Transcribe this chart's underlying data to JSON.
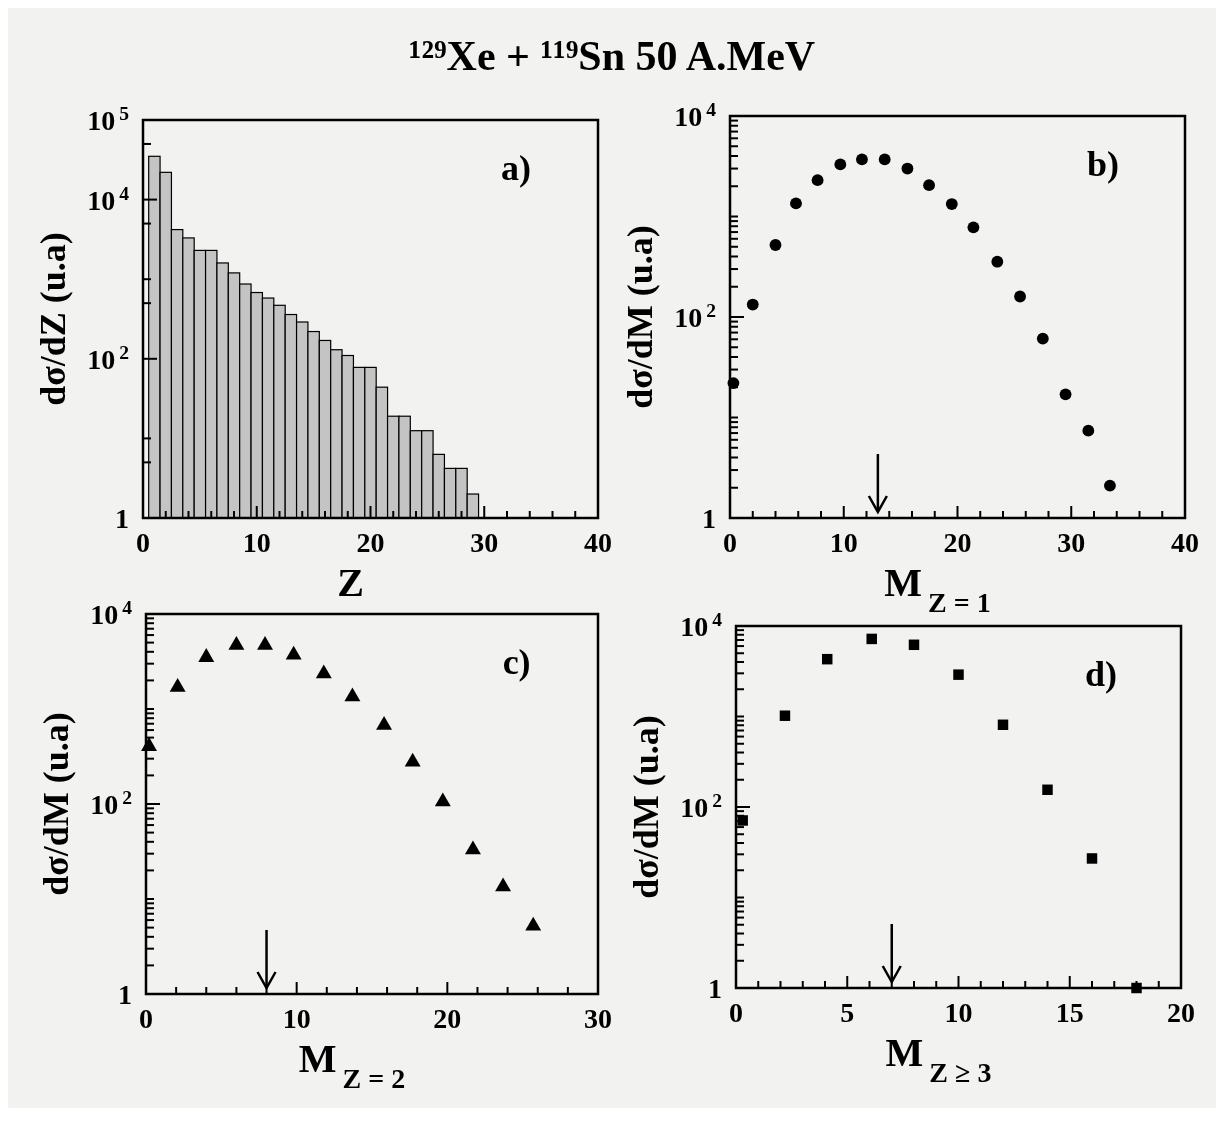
{
  "chart_data": [
    {
      "type": "histogram",
      "title": "¹²⁹Xe + ¹¹⁹Sn 50 A.MeV",
      "xlabel": "Z",
      "ylabel": "dσ/dZ (u.a)",
      "annotations": [
        "a)"
      ],
      "log": "y",
      "color": "#c4c4c4",
      "bins": [
        0.5,
        1.5,
        2.5,
        3.5,
        4.5,
        5.5,
        6.5,
        7.5,
        8.5,
        9.5,
        10.5,
        11.5,
        12.5,
        13.5,
        14.5,
        15.5,
        16.5,
        17.5,
        18.5,
        19.5,
        20.5,
        21.5,
        22.5,
        23.5,
        24.5,
        25.5,
        26.5,
        27.5,
        28.5,
        29.5
      ],
      "values": [
        35000,
        22000,
        4200,
        3300,
        2300,
        2300,
        1600,
        1200,
        870,
        680,
        580,
        470,
        360,
        290,
        220,
        170,
        130,
        110,
        78,
        78,
        44,
        19,
        19,
        12.5,
        12.5,
        6.3,
        4.2,
        4.2,
        2.0
      ],
      "xlim": [
        0,
        40
      ],
      "ylim": [
        1,
        100000
      ],
      "xticks": [
        0,
        {
          "value": 2,
          "label": null
        },
        {
          "value": 4,
          "label": null
        },
        {
          "value": 6,
          "label": null
        },
        {
          "value": 8,
          "label": null
        },
        10,
        {
          "value": 12,
          "label": null
        },
        {
          "value": 14,
          "label": null
        },
        {
          "value": 16,
          "label": null
        },
        {
          "value": 18,
          "label": null
        },
        20,
        {
          "value": 22,
          "label": null
        },
        {
          "value": 24,
          "label": null
        },
        {
          "value": 26,
          "label": null
        },
        {
          "value": 28,
          "label": null
        },
        30,
        {
          "value": 32,
          "label": null
        },
        {
          "value": 34,
          "label": null
        },
        {
          "value": 36,
          "label": null
        },
        {
          "value": 38,
          "label": null
        },
        40
      ],
      "yticks": [
        {
          "value": 1,
          "label": "1"
        },
        {
          "value": 5,
          "label": null
        },
        {
          "value": 10,
          "label": null
        },
        {
          "value": 100,
          "label": "10$^{2}$"
        },
        {
          "value": 500,
          "label": null
        },
        {
          "value": 1000,
          "label": null
        },
        {
          "value": 5000,
          "label": null
        },
        {
          "value": 10000,
          "label": "10$^{4}$"
        },
        {
          "value": 50000,
          "label": null
        },
        {
          "value": 100000,
          "label": "10$^{5}$"
        }
      ]
    },
    {
      "type": "scatter",
      "xlabel": "M$_{Z = 1}$",
      "ylabel": "dσ/dM (u.a)",
      "annotations": [
        "b)"
      ],
      "log": "y",
      "marker": "circle",
      "color": "#000000",
      "x": [
        0.3,
        2,
        4,
        5.8,
        7.7,
        9.7,
        11.6,
        13.6,
        15.6,
        17.5,
        19.5,
        21.4,
        23.5,
        25.5,
        27.5,
        29.5,
        31.5,
        33.4
      ],
      "values": [
        22,
        133,
        520,
        1350,
        2300,
        3300,
        3700,
        3700,
        3000,
        2050,
        1330,
        780,
        355,
        160,
        61,
        17,
        7.4,
        2.1
      ],
      "ref_lines": [
        {
          "axis": "x",
          "value": 13
        }
      ],
      "xlim": [
        0,
        40
      ],
      "ylim": [
        1,
        10000
      ],
      "xticks": [
        0,
        {
          "value": 2,
          "label": null
        },
        {
          "value": 4,
          "label": null
        },
        {
          "value": 6,
          "label": null
        },
        {
          "value": 8,
          "label": null
        },
        10,
        {
          "value": 12,
          "label": null
        },
        {
          "value": 14,
          "label": null
        },
        {
          "value": 16,
          "label": null
        },
        {
          "value": 18,
          "label": null
        },
        20,
        {
          "value": 22,
          "label": null
        },
        {
          "value": 24,
          "label": null
        },
        {
          "value": 26,
          "label": null
        },
        {
          "value": 28,
          "label": null
        },
        30,
        {
          "value": 32,
          "label": null
        },
        {
          "value": 34,
          "label": null
        },
        {
          "value": 36,
          "label": null
        },
        {
          "value": 38,
          "label": null
        },
        40
      ],
      "yticks": [
        {
          "value": 1,
          "label": "1"
        },
        {
          "value": 2,
          "label": null
        },
        {
          "value": 3,
          "label": null
        },
        {
          "value": 4,
          "label": null
        },
        {
          "value": 5,
          "label": null
        },
        {
          "value": 6,
          "label": null
        },
        {
          "value": 7,
          "label": null
        },
        {
          "value": 8,
          "label": null
        },
        {
          "value": 9,
          "label": null
        },
        {
          "value": 10,
          "label": null
        },
        {
          "value": 20,
          "label": null
        },
        {
          "value": 30,
          "label": null
        },
        {
          "value": 40,
          "label": null
        },
        {
          "value": 50,
          "label": null
        },
        {
          "value": 60,
          "label": null
        },
        {
          "value": 70,
          "label": null
        },
        {
          "value": 80,
          "label": null
        },
        {
          "value": 90,
          "label": null
        },
        {
          "value": 100,
          "label": "10$^{2}$"
        },
        {
          "value": 200,
          "label": null
        },
        {
          "value": 300,
          "label": null
        },
        {
          "value": 400,
          "label": null
        },
        {
          "value": 500,
          "label": null
        },
        {
          "value": 600,
          "label": null
        },
        {
          "value": 700,
          "label": null
        },
        {
          "value": 800,
          "label": null
        },
        {
          "value": 900,
          "label": null
        },
        {
          "value": 1000,
          "label": null
        },
        {
          "value": 2000,
          "label": null
        },
        {
          "value": 3000,
          "label": null
        },
        {
          "value": 4000,
          "label": null
        },
        {
          "value": 5000,
          "label": null
        },
        {
          "value": 6000,
          "label": null
        },
        {
          "value": 7000,
          "label": null
        },
        {
          "value": 8000,
          "label": null
        },
        {
          "value": 9000,
          "label": null
        },
        {
          "value": 10000,
          "label": "10$^{4}$"
        }
      ]
    },
    {
      "type": "scatter",
      "xlabel": "M$_{Z = 2}$",
      "ylabel": "dσ/dM (u.a)",
      "annotations": [
        "c)"
      ],
      "log": "y",
      "marker": "triangle",
      "color": "#000000",
      "x": [
        0.2,
        2.1,
        4,
        6,
        7.9,
        9.8,
        11.8,
        13.7,
        15.8,
        17.7,
        19.7,
        21.7,
        23.7,
        25.7
      ],
      "values": [
        405,
        1700,
        3500,
        4700,
        4700,
        3700,
        2350,
        1350,
        675,
        277,
        106,
        33,
        13.5,
        5.2
      ],
      "ref_lines": [
        {
          "axis": "x",
          "value": 8
        }
      ],
      "xlim": [
        0,
        30
      ],
      "ylim": [
        1,
        10000
      ],
      "xticks": [
        0,
        {
          "value": 2,
          "label": null
        },
        {
          "value": 4,
          "label": null
        },
        {
          "value": 6,
          "label": null
        },
        {
          "value": 8,
          "label": null
        },
        10,
        {
          "value": 12,
          "label": null
        },
        {
          "value": 14,
          "label": null
        },
        {
          "value": 16,
          "label": null
        },
        {
          "value": 18,
          "label": null
        },
        20,
        {
          "value": 22,
          "label": null
        },
        {
          "value": 24,
          "label": null
        },
        {
          "value": 26,
          "label": null
        },
        {
          "value": 28,
          "label": null
        },
        30
      ],
      "yticks": [
        {
          "value": 1,
          "label": "1"
        },
        {
          "value": 2,
          "label": null
        },
        {
          "value": 3,
          "label": null
        },
        {
          "value": 4,
          "label": null
        },
        {
          "value": 5,
          "label": null
        },
        {
          "value": 6,
          "label": null
        },
        {
          "value": 7,
          "label": null
        },
        {
          "value": 8,
          "label": null
        },
        {
          "value": 9,
          "label": null
        },
        {
          "value": 10,
          "label": null
        },
        {
          "value": 20,
          "label": null
        },
        {
          "value": 30,
          "label": null
        },
        {
          "value": 40,
          "label": null
        },
        {
          "value": 50,
          "label": null
        },
        {
          "value": 60,
          "label": null
        },
        {
          "value": 70,
          "label": null
        },
        {
          "value": 80,
          "label": null
        },
        {
          "value": 90,
          "label": null
        },
        {
          "value": 100,
          "label": "10$^{2}$"
        },
        {
          "value": 200,
          "label": null
        },
        {
          "value": 300,
          "label": null
        },
        {
          "value": 400,
          "label": null
        },
        {
          "value": 500,
          "label": null
        },
        {
          "value": 600,
          "label": null
        },
        {
          "value": 700,
          "label": null
        },
        {
          "value": 800,
          "label": null
        },
        {
          "value": 900,
          "label": null
        },
        {
          "value": 1000,
          "label": null
        },
        {
          "value": 2000,
          "label": null
        },
        {
          "value": 3000,
          "label": null
        },
        {
          "value": 4000,
          "label": null
        },
        {
          "value": 5000,
          "label": null
        },
        {
          "value": 6000,
          "label": null
        },
        {
          "value": 7000,
          "label": null
        },
        {
          "value": 8000,
          "label": null
        },
        {
          "value": 9000,
          "label": null
        },
        {
          "value": 10000,
          "label": "10$^{4}$"
        }
      ]
    },
    {
      "type": "scatter",
      "xlabel": "M$_{Z ≥ 3}$",
      "ylabel": "dσ/dM (u.a)",
      "annotations": [
        "d)"
      ],
      "log": "y",
      "marker": "square",
      "color": "#000000",
      "x": [
        0.3,
        2.2,
        4.1,
        6.1,
        8,
        10,
        12,
        14,
        16,
        18
      ],
      "values": [
        71,
        1020,
        4300,
        7200,
        6200,
        2900,
        810,
        155,
        27,
        1
      ],
      "ref_lines": [
        {
          "axis": "x",
          "value": 7
        }
      ],
      "xlim": [
        0,
        20
      ],
      "ylim": [
        1,
        10000
      ],
      "xticks": [
        0,
        {
          "value": 1,
          "label": null
        },
        {
          "value": 2,
          "label": null
        },
        {
          "value": 3,
          "label": null
        },
        {
          "value": 4,
          "label": null
        },
        5,
        {
          "value": 6,
          "label": null
        },
        {
          "value": 7,
          "label": null
        },
        {
          "value": 8,
          "label": null
        },
        {
          "value": 9,
          "label": null
        },
        10,
        {
          "value": 11,
          "label": null
        },
        {
          "value": 12,
          "label": null
        },
        {
          "value": 13,
          "label": null
        },
        {
          "value": 14,
          "label": null
        },
        15,
        {
          "value": 16,
          "label": null
        },
        {
          "value": 17,
          "label": null
        },
        {
          "value": 18,
          "label": null
        },
        {
          "value": 19,
          "label": null
        },
        20
      ],
      "yticks": [
        {
          "value": 1,
          "label": "1"
        },
        {
          "value": 2,
          "label": null
        },
        {
          "value": 3,
          "label": null
        },
        {
          "value": 4,
          "label": null
        },
        {
          "value": 5,
          "label": null
        },
        {
          "value": 6,
          "label": null
        },
        {
          "value": 7,
          "label": null
        },
        {
          "value": 8,
          "label": null
        },
        {
          "value": 9,
          "label": null
        },
        {
          "value": 10,
          "label": null
        },
        {
          "value": 20,
          "label": null
        },
        {
          "value": 30,
          "label": null
        },
        {
          "value": 40,
          "label": null
        },
        {
          "value": 50,
          "label": null
        },
        {
          "value": 60,
          "label": null
        },
        {
          "value": 70,
          "label": null
        },
        {
          "value": 80,
          "label": null
        },
        {
          "value": 90,
          "label": null
        },
        {
          "value": 100,
          "label": "10$^{2}$"
        },
        {
          "value": 200,
          "label": null
        },
        {
          "value": 300,
          "label": null
        },
        {
          "value": 400,
          "label": null
        },
        {
          "value": 500,
          "label": null
        },
        {
          "value": 600,
          "label": null
        },
        {
          "value": 700,
          "label": null
        },
        {
          "value": 800,
          "label": null
        },
        {
          "value": 900,
          "label": null
        },
        {
          "value": 1000,
          "label": null
        },
        {
          "value": 2000,
          "label": null
        },
        {
          "value": 3000,
          "label": null
        },
        {
          "value": 4000,
          "label": null
        },
        {
          "value": 5000,
          "label": null
        },
        {
          "value": 6000,
          "label": null
        },
        {
          "value": 7000,
          "label": null
        },
        {
          "value": 8000,
          "label": null
        },
        {
          "value": 9000,
          "label": null
        },
        {
          "value": 10000,
          "label": "10$^{4}$"
        }
      ]
    }
  ]
}
